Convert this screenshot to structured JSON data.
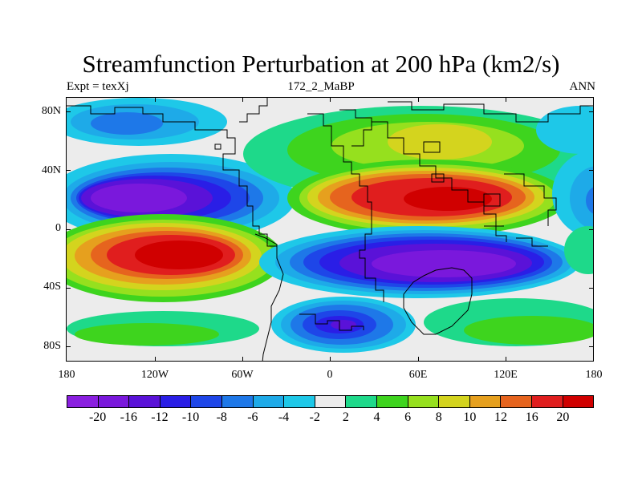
{
  "title": "Streamfunction Perturbation at 200 hPa (km2/s)",
  "subtitle_left": "Expt = texXj",
  "subtitle_center": "172_2_MaBP",
  "subtitle_right": "ANN",
  "y_axis_labels": [
    "80N",
    "40N",
    "0",
    "40S",
    "80S"
  ],
  "x_axis_labels": [
    "180",
    "120W",
    "60W",
    "0",
    "60E",
    "120E",
    "180"
  ],
  "colorbar": {
    "labels": [
      "-20",
      "-16",
      "-12",
      "-10",
      "-8",
      "-6",
      "-4",
      "-2",
      "2",
      "4",
      "6",
      "8",
      "10",
      "12",
      "16",
      "20"
    ],
    "colors": [
      "#8a1fe0",
      "#7a18dc",
      "#5a12d8",
      "#2a1ee6",
      "#1e46e8",
      "#1e78e8",
      "#1eaae8",
      "#1ec8e8",
      "#ececec",
      "#1ed98a",
      "#3ed41e",
      "#96e01e",
      "#d4d41e",
      "#e6a01e",
      "#e6641e",
      "#e01e1e",
      "#d00000"
    ]
  },
  "colors": {
    "neutral": "#ececec",
    "coast": "#000000"
  }
}
